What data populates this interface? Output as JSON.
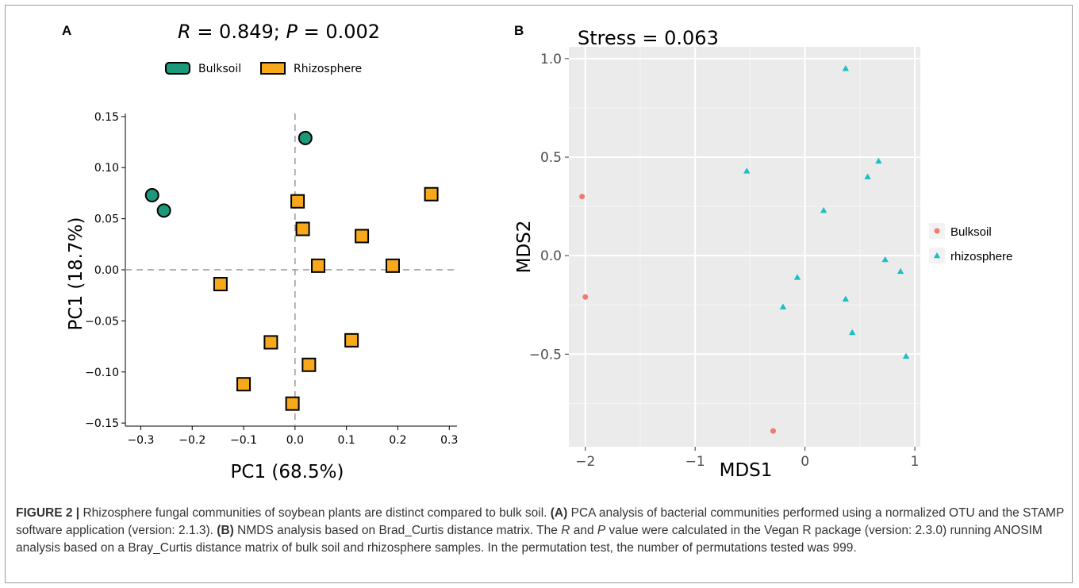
{
  "colors": {
    "bulk_a": "#1a9a7a",
    "rhizo_a": "#f7a81b",
    "bulk_b": "#f07b72",
    "rhizo_b": "#1bbfc4",
    "panel_bg": "#ebebeb"
  },
  "chart_data": [
    {
      "type": "scatter",
      "panel_label": "A",
      "title": "R = 0.849; P = 0.002",
      "title_parts": {
        "r_sym": "R",
        "r_val": " = 0.849; ",
        "p_sym": "P",
        "p_val": " = 0.002"
      },
      "xlabel": "PC1 (68.5%)",
      "ylabel": "PC1 (18.7%)",
      "xlim": [
        -0.33,
        0.315
      ],
      "ylim": [
        -0.153,
        0.153
      ],
      "xticks": [
        -0.3,
        -0.2,
        -0.1,
        0.0,
        0.1,
        0.2,
        0.3
      ],
      "xtick_labels": [
        "−0.3",
        "−0.2",
        "−0.1",
        "0.0",
        "0.1",
        "0.2",
        "0.3"
      ],
      "yticks": [
        -0.15,
        -0.1,
        -0.05,
        0.0,
        0.05,
        0.1,
        0.15
      ],
      "ytick_labels": [
        "−0.15",
        "−0.10",
        "−0.05",
        "0.00",
        "0.05",
        "0.10",
        "0.15"
      ],
      "legend_position": "top",
      "reference_lines": {
        "x": 0,
        "y": 0
      },
      "series": [
        {
          "name": "Bulksoil",
          "marker": "circle",
          "x": [
            -0.278,
            -0.255,
            0.02
          ],
          "y": [
            0.073,
            0.058,
            0.129
          ]
        },
        {
          "name": "Rhizosphere",
          "marker": "square",
          "x": [
            0.005,
            0.015,
            0.265,
            0.13,
            0.045,
            0.19,
            -0.145,
            -0.047,
            0.11,
            0.027,
            -0.1,
            -0.005
          ],
          "y": [
            0.067,
            0.04,
            0.074,
            0.033,
            0.004,
            0.004,
            -0.014,
            -0.071,
            -0.069,
            -0.093,
            -0.112,
            -0.131
          ]
        }
      ]
    },
    {
      "type": "scatter",
      "panel_label": "B",
      "title": "Stress = 0.063",
      "xlabel": "MDS1",
      "ylabel": "MDS2",
      "xlim": [
        -2.15,
        1.05
      ],
      "ylim": [
        -0.97,
        1.06
      ],
      "xticks": [
        -2,
        -1,
        0,
        1
      ],
      "xtick_labels": [
        "−2",
        "−1",
        "0",
        "1"
      ],
      "yticks": [
        -0.5,
        0.0,
        0.5,
        1.0
      ],
      "ytick_labels": [
        "−0.5",
        "0.0",
        "0.5",
        "1.0"
      ],
      "grid": true,
      "legend_position": "right",
      "series": [
        {
          "name": "Bulksoil",
          "marker": "circle",
          "x": [
            -2.03,
            -2.0,
            -0.29
          ],
          "y": [
            0.3,
            -0.21,
            -0.89
          ]
        },
        {
          "name": "rhizosphere",
          "marker": "triangle",
          "x": [
            0.37,
            -0.53,
            0.67,
            0.57,
            0.17,
            0.73,
            0.87,
            -0.07,
            0.37,
            -0.2,
            0.43,
            0.92
          ],
          "y": [
            0.95,
            0.43,
            0.48,
            0.4,
            0.23,
            -0.02,
            -0.08,
            -0.11,
            -0.22,
            -0.26,
            -0.39,
            -0.51
          ]
        }
      ]
    }
  ],
  "caption": {
    "figure_label": "FIGURE 2 |",
    "text_1": " Rhizosphere fungal communities of soybean plants are distinct compared to bulk soil. ",
    "a_label": "(A)",
    "text_2": " PCA analysis of bacterial communities performed using a normalized OTU and the STAMP software application (version: 2.1.3). ",
    "b_label": "(B)",
    "text_3": " NMDS analysis based on Brad_Curtis distance matrix. The ",
    "r_sym": "R",
    "text_4": " and ",
    "p_sym": "P",
    "text_5": " value were calculated in the Vegan R package (version: 2.3.0) running ANOSIM analysis based on a Bray_Curtis distance matrix of bulk soil and rhizosphere samples. In the permutation test, the number of permutations tested was 999."
  }
}
